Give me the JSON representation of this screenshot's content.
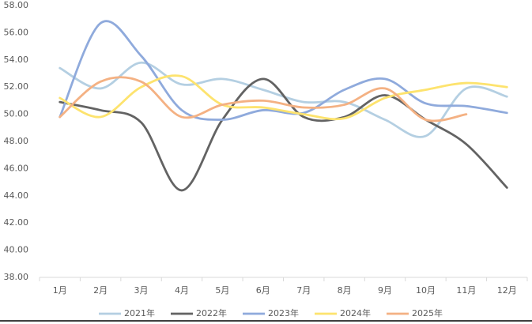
{
  "chart_data": {
    "type": "line",
    "categories": [
      "1月",
      "2月",
      "3月",
      "4月",
      "5月",
      "6月",
      "7月",
      "8月",
      "9月",
      "10月",
      "11月",
      "12月"
    ],
    "series": [
      {
        "name": "2021年",
        "color": "#b4cfe2",
        "values": [
          53.4,
          51.9,
          53.8,
          52.2,
          52.6,
          51.8,
          50.9,
          50.9,
          49.6,
          48.4,
          51.9,
          51.3
        ]
      },
      {
        "name": "2022年",
        "color": "#636363",
        "values": [
          50.9,
          50.3,
          49.4,
          44.4,
          49.6,
          52.6,
          49.8,
          49.8,
          51.4,
          49.6,
          47.8,
          44.6
        ]
      },
      {
        "name": "2023年",
        "color": "#8faadc",
        "values": [
          49.8,
          56.7,
          54.3,
          50.3,
          49.6,
          50.3,
          50.1,
          51.8,
          52.6,
          50.8,
          50.6,
          50.1
        ]
      },
      {
        "name": "2024年",
        "color": "#fde36e",
        "values": [
          51.2,
          49.8,
          52.0,
          52.8,
          50.7,
          50.5,
          50.0,
          49.7,
          51.2,
          51.8,
          52.3,
          52.0
        ]
      },
      {
        "name": "2025年",
        "color": "#f4b183",
        "values": [
          49.8,
          52.4,
          52.4,
          49.8,
          50.7,
          51.0,
          50.5,
          50.7,
          51.9,
          49.6,
          50.0,
          null
        ]
      }
    ],
    "ylim": [
      38,
      58
    ],
    "yticks": [
      {
        "value": 38,
        "label": "38.00"
      },
      {
        "value": 40,
        "label": "40.00"
      },
      {
        "value": 42,
        "label": "42.00"
      },
      {
        "value": 44,
        "label": "44.00"
      },
      {
        "value": 46,
        "label": "46.00"
      },
      {
        "value": 48,
        "label": "48.00"
      },
      {
        "value": 50,
        "label": "50.00"
      },
      {
        "value": 52,
        "label": "52.00"
      },
      {
        "value": 54,
        "label": "54.00"
      },
      {
        "value": 56,
        "label": "56.00"
      },
      {
        "value": 58,
        "label": "58.00"
      }
    ],
    "legend": "bottom"
  }
}
